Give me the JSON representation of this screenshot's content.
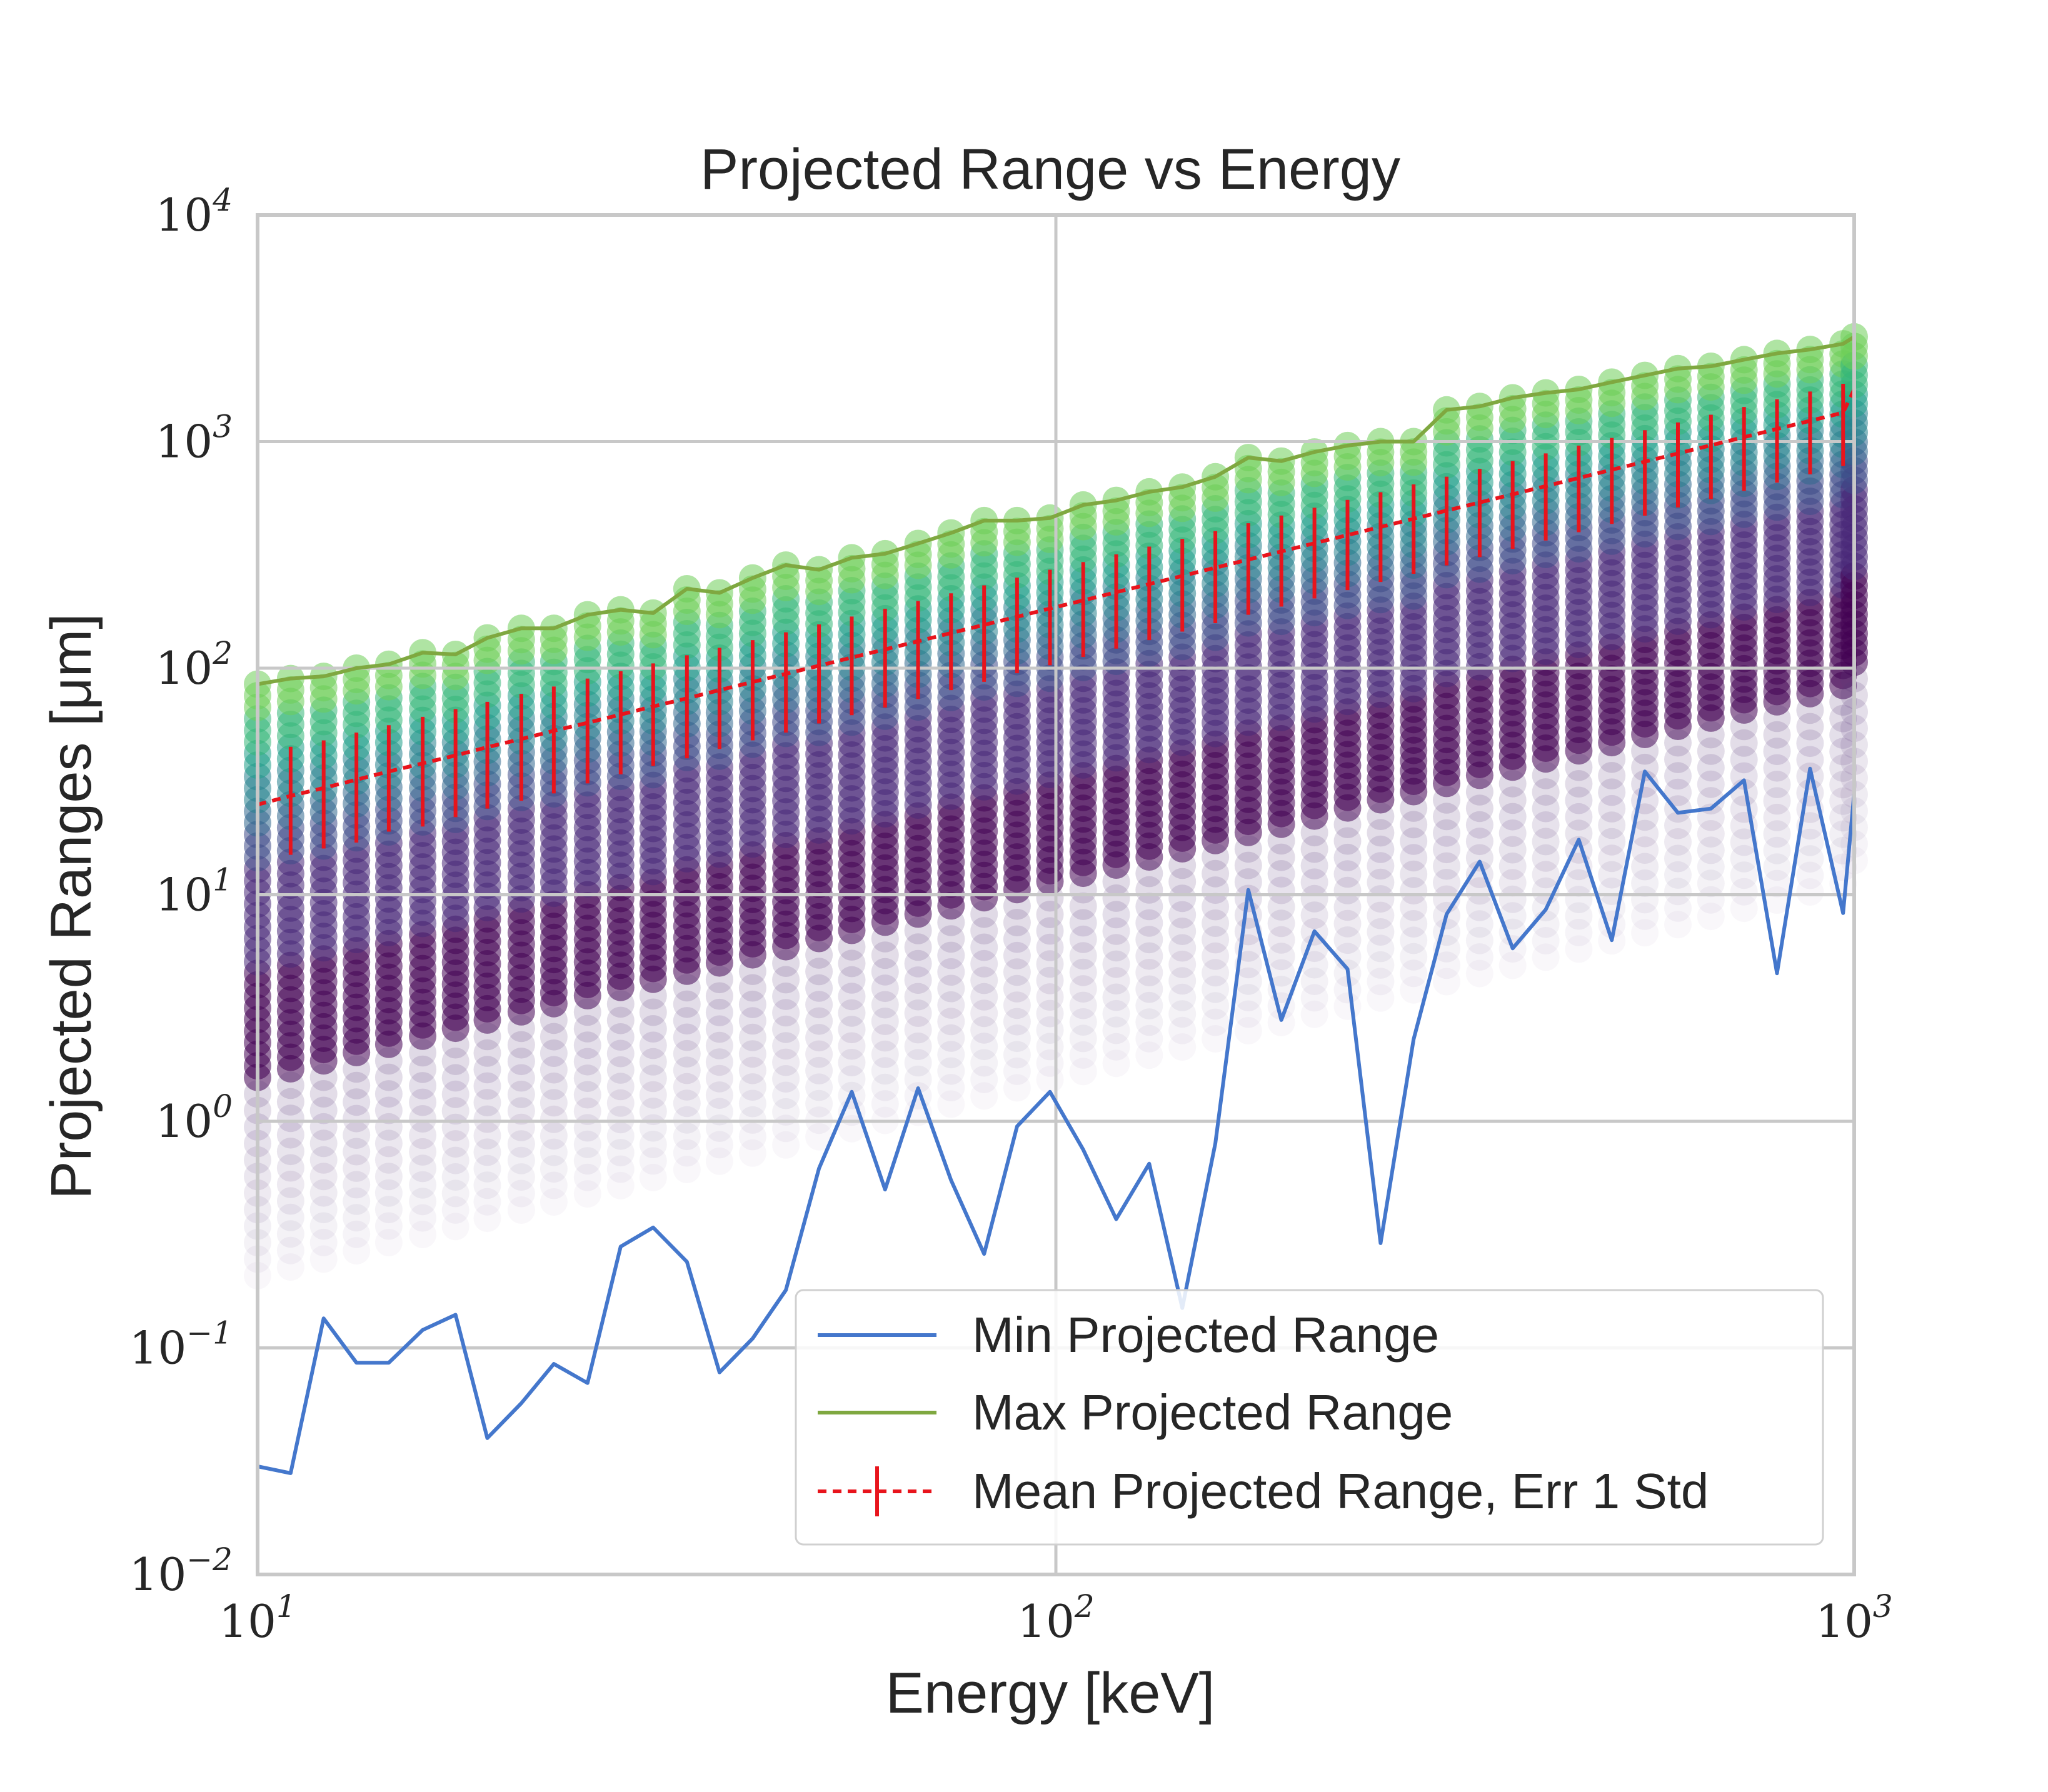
{
  "chart_data": {
    "type": "scatter",
    "title": "Projected Range vs Energy",
    "xlabel": "Energy [keV]",
    "ylabel": "Projected Ranges [μm]",
    "x_scale": "log",
    "y_scale": "log",
    "xlim": [
      10,
      1000
    ],
    "ylim": [
      0.01,
      10000
    ],
    "x_ticks": [
      {
        "value": 10,
        "base": "10",
        "exp": "1"
      },
      {
        "value": 100,
        "base": "10",
        "exp": "2"
      },
      {
        "value": 1000,
        "base": "10",
        "exp": "3"
      }
    ],
    "y_ticks": [
      {
        "value": 0.01,
        "base": "10",
        "exp": "−2"
      },
      {
        "value": 0.1,
        "base": "10",
        "exp": "−1"
      },
      {
        "value": 1,
        "base": "10",
        "exp": "0"
      },
      {
        "value": 10,
        "base": "10",
        "exp": "1"
      },
      {
        "value": 100,
        "base": "10",
        "exp": "2"
      },
      {
        "value": 1000,
        "base": "10",
        "exp": "3"
      },
      {
        "value": 10000,
        "base": "10",
        "exp": "4"
      }
    ],
    "grid": true,
    "legend_position": "lower-right",
    "energies": [
      10.0,
      11.0,
      12.1,
      13.3,
      14.6,
      16.1,
      17.7,
      19.4,
      21.4,
      23.5,
      25.9,
      28.5,
      31.3,
      34.5,
      37.9,
      41.7,
      45.9,
      50.5,
      55.5,
      61.1,
      67.2,
      73.9,
      81.3,
      89.4,
      98.3,
      108.2,
      119.0,
      130.9,
      144.0,
      158.4,
      174.2,
      191.6,
      210.8,
      231.9,
      255.1,
      280.6,
      308.6,
      339.5,
      373.4,
      410.8,
      451.8,
      497.0,
      546.7,
      601.4,
      661.5,
      727.7,
      800.4,
      880.5,
      968.5,
      1000.0
    ],
    "series": [
      {
        "name": "Min Projected Range",
        "color": "#4477cc",
        "values": [
          0.03,
          0.028,
          0.135,
          0.086,
          0.086,
          0.12,
          0.14,
          0.04,
          0.057,
          0.085,
          0.07,
          0.28,
          0.34,
          0.24,
          0.078,
          0.11,
          0.18,
          0.62,
          1.35,
          0.5,
          1.4,
          0.55,
          0.26,
          0.95,
          1.35,
          0.75,
          0.37,
          0.65,
          0.15,
          0.8,
          10.5,
          2.8,
          6.9,
          4.7,
          0.29,
          2.3,
          8.2,
          14.0,
          5.8,
          8.6,
          17.5,
          6.3,
          35.0,
          23.0,
          24.0,
          32.0,
          4.5,
          36.0,
          8.3,
          28.0
        ]
      },
      {
        "name": "Max Projected Range",
        "color": "#7fa840",
        "values": [
          85,
          90,
          92,
          100,
          104,
          117,
          115,
          136,
          150,
          150,
          172,
          181,
          175,
          224,
          215,
          250,
          285,
          272,
          307,
          320,
          355,
          395,
          448,
          448,
          460,
          525,
          550,
          600,
          630,
          700,
          850,
          820,
          900,
          960,
          1000,
          1000,
          1380,
          1430,
          1560,
          1640,
          1700,
          1830,
          1960,
          2100,
          2150,
          2300,
          2450,
          2550,
          2700,
          2900
        ]
      },
      {
        "name": "Mean Projected Range, Err 1 Std",
        "color": "#e8141c",
        "values": [
          25,
          27.3,
          29.6,
          32.2,
          35.0,
          38.0,
          41.2,
          44.8,
          48.7,
          52.9,
          57.4,
          62.4,
          67.8,
          73.6,
          80.0,
          86.9,
          94.4,
          102.6,
          111.4,
          121.1,
          131.5,
          142.9,
          155.3,
          168.7,
          183.3,
          199.1,
          216.3,
          235.0,
          255.4,
          277.5,
          301.5,
          327.5,
          355.9,
          386.6,
          420.1,
          456.4,
          495.9,
          538.8,
          585.4,
          636.0,
          691.1,
          750.8,
          815.8,
          886.3,
          963.0,
          1046.2,
          1136.7,
          1235.0,
          1341.8,
          1700.0
        ],
        "error_low": [
          14,
          15,
          16,
          17,
          19,
          20,
          22,
          24,
          26,
          28,
          31,
          34,
          37,
          40,
          44,
          48,
          52,
          57,
          62,
          67,
          73,
          80,
          87,
          95,
          103,
          112,
          122,
          133,
          145,
          158,
          172,
          187,
          203,
          221,
          240,
          261,
          284,
          309,
          336,
          366,
          398,
          433,
          471,
          512,
          557,
          606,
          659,
          717,
          780,
          1100
        ],
        "error_high": [
          42,
          45,
          48,
          52,
          56,
          61,
          66,
          71,
          77,
          83,
          90,
          97,
          105,
          114,
          123,
          133,
          144,
          156,
          169,
          183,
          198,
          214,
          232,
          251,
          272,
          294,
          318,
          344,
          372,
          403,
          436,
          472,
          511,
          553,
          598,
          647,
          700,
          758,
          820,
          887,
          960,
          1038,
          1123,
          1215,
          1314,
          1422,
          1538,
          1664,
          1800,
          2300
        ]
      }
    ],
    "scatter_colormap": [
      "#440154",
      "#482878",
      "#3e4a89",
      "#31688e",
      "#26828e",
      "#1f9e89",
      "#35b779",
      "#6ece58",
      "#b5de2b"
    ]
  }
}
